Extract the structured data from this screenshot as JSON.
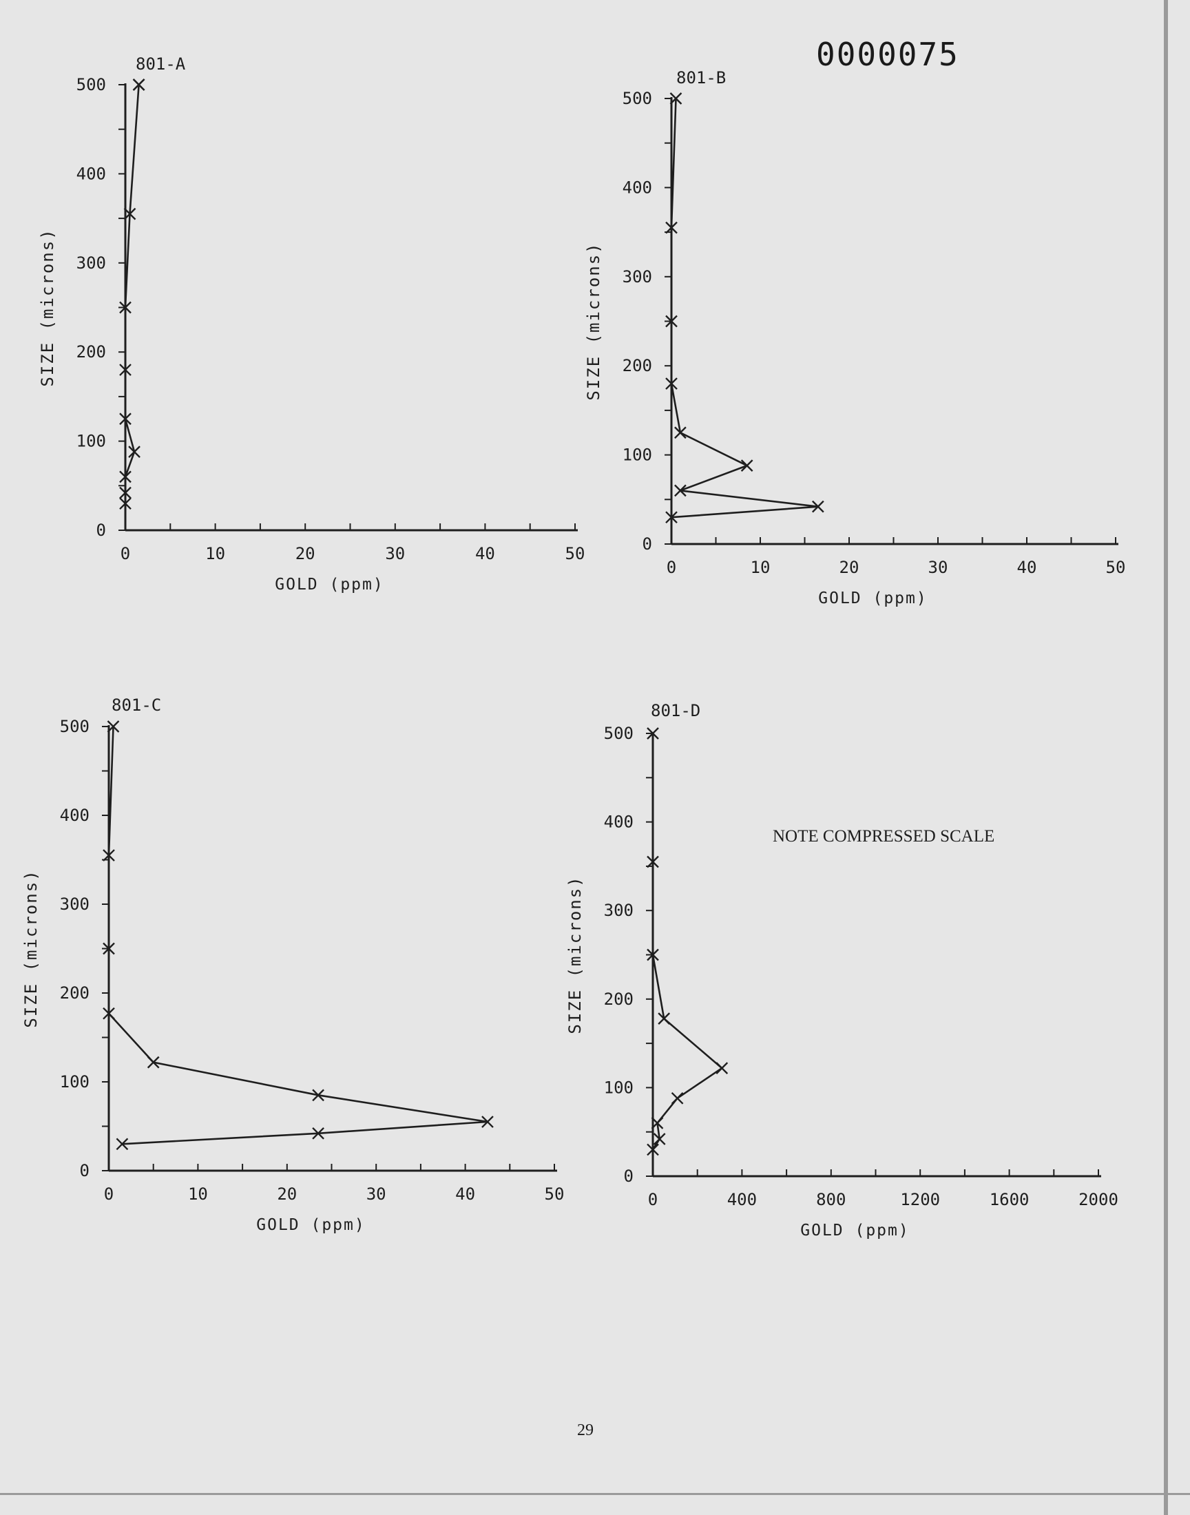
{
  "document": {
    "doc_number": "0000075",
    "page_number": "29"
  },
  "chart_data": [
    {
      "type": "line",
      "title": "801-A",
      "xlabel": "GOLD (ppm)",
      "ylabel": "SIZE (microns)",
      "xlim": [
        0,
        50
      ],
      "ylim": [
        0,
        500
      ],
      "xticks": [
        "0",
        "10",
        "20",
        "30",
        "40",
        "50"
      ],
      "yticks": [
        "0",
        "100",
        "200",
        "300",
        "400",
        "500"
      ],
      "series": [
        {
          "x": [
            0,
            0,
            0,
            1,
            0,
            0,
            0,
            0.5,
            1.5,
            1.5
          ],
          "y": [
            30,
            42,
            60,
            88,
            125,
            180,
            250,
            355,
            500,
            500
          ]
        }
      ],
      "grid": false,
      "annotation": ""
    },
    {
      "type": "line",
      "title": "801-B",
      "xlabel": "GOLD (ppm)",
      "ylabel": "SIZE (microns)",
      "xlim": [
        0,
        50
      ],
      "ylim": [
        0,
        500
      ],
      "xticks": [
        "0",
        "10",
        "20",
        "30",
        "40",
        "50"
      ],
      "yticks": [
        "0",
        "100",
        "200",
        "300",
        "400",
        "500"
      ],
      "series": [
        {
          "x": [
            0,
            16.5,
            1,
            8.5,
            1,
            0,
            0,
            0,
            0.5
          ],
          "y": [
            30,
            42,
            60,
            88,
            125,
            180,
            250,
            355,
            500
          ]
        }
      ],
      "grid": false,
      "annotation": ""
    },
    {
      "type": "line",
      "title": "801-C",
      "xlabel": "GOLD (ppm)",
      "ylabel": "SIZE (microns)",
      "xlim": [
        0,
        50
      ],
      "ylim": [
        0,
        500
      ],
      "xticks": [
        "0",
        "10",
        "20",
        "30",
        "40",
        "50"
      ],
      "yticks": [
        "0",
        "100",
        "200",
        "300",
        "400",
        "500"
      ],
      "series": [
        {
          "x": [
            1.5,
            23.5,
            42.5,
            23.5,
            5,
            0,
            0,
            0,
            0.5
          ],
          "y": [
            30,
            42,
            55,
            85,
            122,
            177,
            250,
            355,
            500
          ]
        }
      ],
      "grid": false,
      "annotation": ""
    },
    {
      "type": "line",
      "title": "801-D",
      "xlabel": "GOLD (ppm)",
      "ylabel": "SIZE (microns)",
      "xlim": [
        0,
        2000
      ],
      "ylim": [
        0,
        500
      ],
      "xticks": [
        "0",
        "400",
        "800",
        "1200",
        "1600",
        "2000"
      ],
      "yticks": [
        "0",
        "100",
        "200",
        "300",
        "400",
        "500"
      ],
      "series": [
        {
          "x": [
            0,
            30,
            20,
            110,
            310,
            50,
            0,
            0,
            0
          ],
          "y": [
            30,
            42,
            60,
            88,
            122,
            178,
            250,
            355,
            500
          ]
        }
      ],
      "grid": false,
      "annotation": "NOTE COMPRESSED SCALE"
    }
  ]
}
